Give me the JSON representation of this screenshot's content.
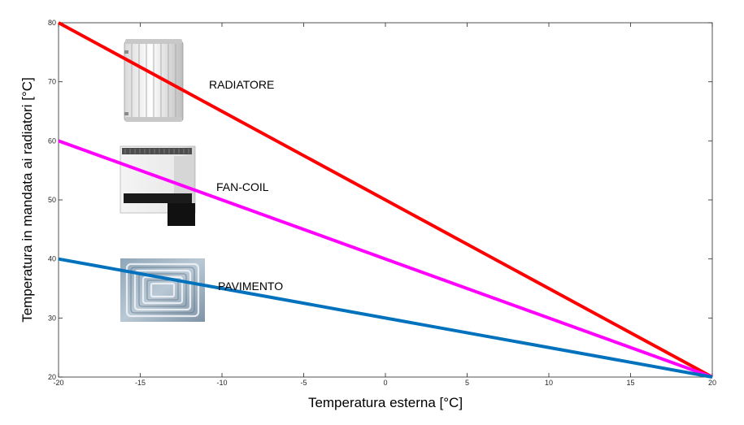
{
  "chart_data": {
    "type": "line",
    "xlabel": "Temperatura esterna [°C]",
    "ylabel": "Temperatura in mandata ai radiatori [°C]",
    "xlim": [
      -20,
      20
    ],
    "ylim": [
      20,
      80
    ],
    "xticks": [
      -20,
      -15,
      -10,
      -5,
      0,
      5,
      10,
      15,
      20
    ],
    "yticks": [
      20,
      30,
      40,
      50,
      60,
      70,
      80
    ],
    "grid": false,
    "series": [
      {
        "name": "RADIATORE",
        "color": "#ff0000",
        "icon": "radiator-icon",
        "x": [
          -20,
          20
        ],
        "y": [
          80,
          20
        ]
      },
      {
        "name": "FAN-COIL",
        "color": "#ff00ff",
        "icon": "fan-coil-icon",
        "x": [
          -20,
          20
        ],
        "y": [
          60,
          20
        ]
      },
      {
        "name": "PAVIMENTO",
        "color": "#0072bd",
        "icon": "underfloor-heating-icon",
        "x": [
          -20,
          20
        ],
        "y": [
          40,
          20
        ]
      }
    ]
  }
}
